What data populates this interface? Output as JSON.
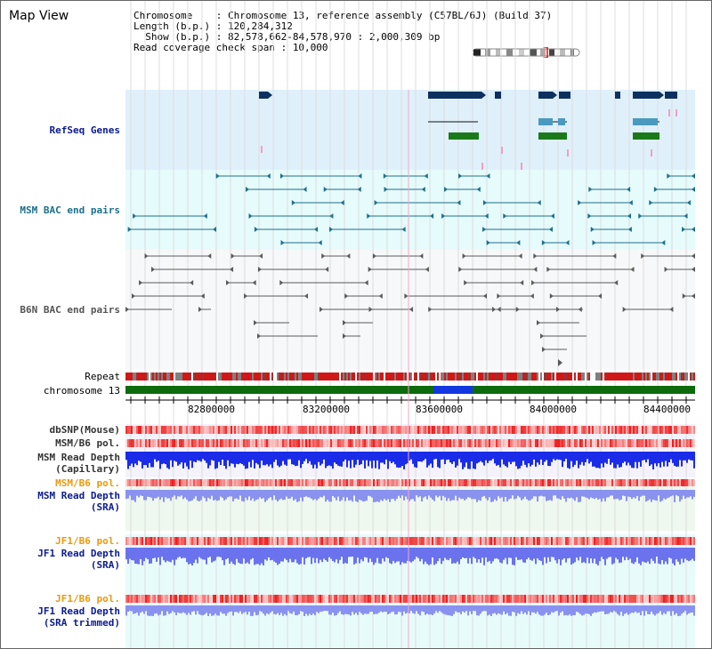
{
  "app_title": "Map View",
  "header": {
    "chromosome_label": "Chromosome    : ",
    "chromosome_value": "Chromosome 13, reference assembly (C57BL/6J) (Build 37)",
    "length_label": "Length (b.p.) : ",
    "length_value": "120,284,312",
    "show_label": "  Show (b.p.) : ",
    "show_value": "82,578,662-84,578,970 : 2,000,309 bp",
    "coverage_label": "Read coverage check span : ",
    "coverage_value": "10,000"
  },
  "tracks": {
    "refseq": "RefSeq Genes",
    "msm_bac": "MSM BAC end pairs",
    "b6n_bac": "B6N BAC end pairs",
    "repeat": "Repeat",
    "chromosome": "chromosome 13",
    "dbsnp": "dbSNP(Mouse)",
    "msm_b6_pol1": "MSM/B6 pol.",
    "msm_depth_cap_1": "MSM Read Depth",
    "msm_depth_cap_2": "(Capillary)",
    "msm_b6_pol2": "MSM/B6 pol.",
    "msm_depth_sra_1": "MSM Read Depth",
    "msm_depth_sra_2": "(SRA)",
    "jf1_b6_pol1": "JF1/B6 pol.",
    "jf1_depth_sra_1": "JF1 Read Depth",
    "jf1_depth_sra_2": "(SRA)",
    "jf1_b6_pol2": "JF1/B6 pol.",
    "jf1_depth_trim_1": "JF1 Read Depth",
    "jf1_depth_trim_2": "(SRA trimmed)"
  },
  "axis": {
    "ticks": [
      "82800000",
      "83200000",
      "83600000",
      "84000000",
      "84400000"
    ]
  },
  "colors": {
    "refseq_bg": "#dff0fb",
    "msm_bg": "#e6fbfb",
    "b6n_bg": "#f6f7f8",
    "msm_color": "#1c6f8c",
    "b6n_color": "#5a5a5a",
    "gene_dark": "#0c3060",
    "gene_light": "#4a9ac0",
    "gene_green": "#1a7a1a",
    "chrom_green": "#0d6a0d",
    "chrom_blue": "#1438e0",
    "depth_blue": "#1b2ce8",
    "depth_light": "#8a92f0",
    "pol_red": "#ef4040"
  }
}
